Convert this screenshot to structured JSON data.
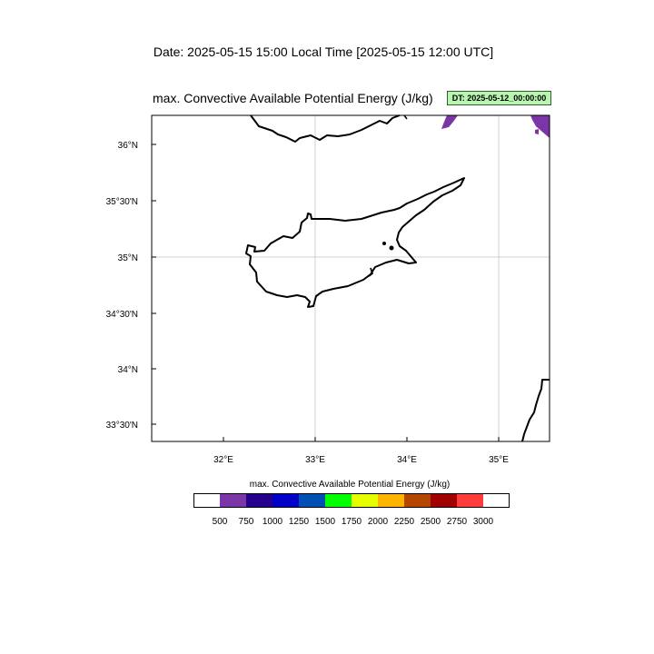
{
  "header": {
    "date_line": "Date: 2025-05-15  15:00 Local Time [2025-05-15  12:00 UTC]",
    "map_title": "max. Convective Available Potential Energy   (J/kg)",
    "dt_badge": "DT: 2025-05-12_00:00:00"
  },
  "axes": {
    "lat_labels": [
      "36°N",
      "35°30'N",
      "35°N",
      "34°30'N",
      "34°N",
      "33°30'N"
    ],
    "lon_labels": [
      "32°E",
      "33°E",
      "34°E",
      "35°E"
    ]
  },
  "legend": {
    "title": "max. Convective Available Potential Energy  (J/kg)",
    "labels": [
      "500",
      "750",
      "1000",
      "1250",
      "1500",
      "1750",
      "2000",
      "2250",
      "2500",
      "2750",
      "3000"
    ],
    "colors": [
      "#ffffff",
      "#7b35a6",
      "#24008c",
      "#0000c8",
      "#0050b4",
      "#00ff00",
      "#e6ff00",
      "#ffb400",
      "#b44600",
      "#a00000",
      "#ff3c3c",
      "#ffffff"
    ]
  },
  "colors": {
    "cape_fill": "#7b35a6",
    "coast": "#000000",
    "grid": "#d0d0d0",
    "badge_bg": "#b9f5b0"
  }
}
